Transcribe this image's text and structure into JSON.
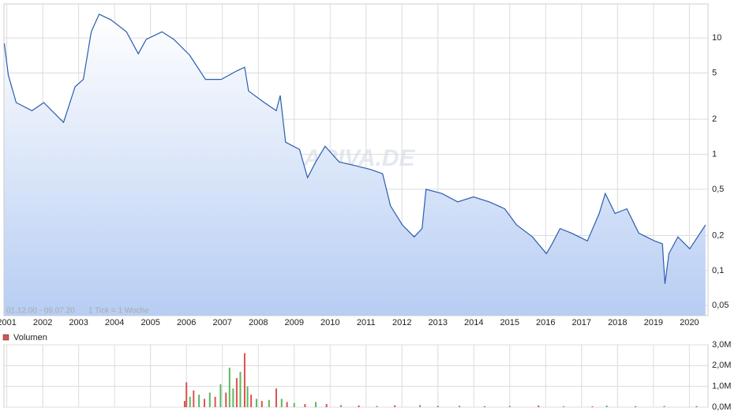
{
  "chart_data": [
    {
      "type": "line",
      "log_scale": true,
      "grid": true,
      "color": "#2a5db0",
      "note": "01.12.00 - 09.07.20",
      "tick_note": "1 Tick = 1 Woche",
      "watermark": "ARIVA.DE",
      "x": [
        2000.93,
        2001.04,
        2001.26,
        2001.7,
        2002.03,
        2002.47,
        2002.58,
        2002.9,
        2003.13,
        2003.35,
        2003.57,
        2003.9,
        2004.33,
        2004.66,
        2004.88,
        2005.32,
        2005.65,
        2006.09,
        2006.53,
        2006.97,
        2007.4,
        2007.62,
        2007.73,
        2008.17,
        2008.5,
        2008.61,
        2008.76,
        2009.15,
        2009.37,
        2009.6,
        2009.86,
        2010.25,
        2010.69,
        2011.13,
        2011.46,
        2011.68,
        2012.01,
        2012.34,
        2012.56,
        2012.67,
        2013.11,
        2013.55,
        2013.99,
        2014.43,
        2014.86,
        2015.19,
        2015.63,
        2016.02,
        2016.18,
        2016.4,
        2016.72,
        2017.16,
        2017.49,
        2017.66,
        2017.93,
        2018.26,
        2018.59,
        2019.03,
        2019.25,
        2019.32,
        2019.43,
        2019.68,
        2020.01,
        2020.23,
        2020.45
      ],
      "values": [
        8.96,
        4.8,
        2.78,
        2.37,
        2.78,
        2.03,
        1.88,
        3.8,
        4.4,
        11.3,
        16,
        14.3,
        11.3,
        7.3,
        9.7,
        11.3,
        9.7,
        7.1,
        4.4,
        4.4,
        5.2,
        5.6,
        3.5,
        2.78,
        2.37,
        3.2,
        1.27,
        1.1,
        0.63,
        0.86,
        1.17,
        0.86,
        0.8,
        0.74,
        0.68,
        0.36,
        0.247,
        0.195,
        0.23,
        0.5,
        0.46,
        0.39,
        0.43,
        0.39,
        0.34,
        0.247,
        0.195,
        0.14,
        0.17,
        0.23,
        0.21,
        0.18,
        0.31,
        0.46,
        0.31,
        0.34,
        0.21,
        0.18,
        0.17,
        0.077,
        0.14,
        0.195,
        0.154,
        0.195,
        0.247
      ],
      "xlim": [
        2000.92,
        2020.52
      ],
      "xticks": [
        2001,
        2002,
        2003,
        2004,
        2005,
        2006,
        2007,
        2008,
        2009,
        2010,
        2011,
        2012,
        2013,
        2014,
        2015,
        2016,
        2017,
        2018,
        2019,
        2020
      ],
      "ylim": [
        0.041,
        19.6
      ],
      "yticks": [
        {
          "value": 10,
          "label": "10"
        },
        {
          "value": 5,
          "label": "5"
        },
        {
          "value": 2,
          "label": "2"
        },
        {
          "value": 1,
          "label": "1"
        },
        {
          "value": 0.5,
          "label": "0,5"
        },
        {
          "value": 0.2,
          "label": "0,2"
        },
        {
          "value": 0.1,
          "label": "0,1"
        },
        {
          "value": 0.05,
          "label": "0,05"
        }
      ]
    },
    {
      "type": "bar",
      "grid": true,
      "x": [
        2005.95,
        2006.0,
        2006.1,
        2006.2,
        2006.35,
        2006.5,
        2006.65,
        2006.8,
        2006.95,
        2007.1,
        2007.2,
        2007.3,
        2007.4,
        2007.5,
        2007.62,
        2007.7,
        2007.8,
        2007.95,
        2008.1,
        2008.3,
        2008.5,
        2008.65,
        2008.8,
        2009.0,
        2009.3,
        2009.6,
        2009.9,
        2010.3,
        2010.8,
        2011.3,
        2011.8,
        2012.5,
        2013.0,
        2013.6,
        2014.3,
        2015.0,
        2015.8,
        2016.5,
        2017.3,
        2017.7,
        2018.5,
        2019.3,
        2020.2
      ],
      "series": [
        {
          "name": "Volumen",
          "color": "#d9534f",
          "values": [
            300000,
            1200000,
            500000,
            800000,
            600000,
            400000,
            700000,
            500000,
            1100000,
            700000,
            1900000,
            900000,
            1400000,
            1700000,
            2600000,
            1000000,
            600000,
            400000,
            300000,
            350000,
            900000,
            400000,
            250000,
            200000,
            150000,
            250000,
            150000,
            100000,
            80000,
            60000,
            90000,
            100000,
            60000,
            70000,
            50000,
            60000,
            80000,
            50000,
            40000,
            80000,
            50000,
            60000,
            50000
          ]
        }
      ],
      "bar_colors": [
        "#d9534f",
        "#d9534f",
        "#5cb85c",
        "#d9534f",
        "#5cb85c",
        "#d9534f",
        "#5cb85c",
        "#d9534f",
        "#5cb85c",
        "#d9534f",
        "#5cb85c",
        "#5cb85c",
        "#d9534f",
        "#5cb85c",
        "#d9534f",
        "#5cb85c",
        "#d9534f",
        "#5cb85c",
        "#d9534f",
        "#5cb85c",
        "#d9534f",
        "#5cb85c",
        "#d9534f",
        "#5cb85c",
        "#d9534f",
        "#5cb85c",
        "#d9534f",
        "#5cb85c",
        "#d9534f",
        "#5cb85c",
        "#d9534f",
        "#5cb85c",
        "#d9534f",
        "#5cb85c",
        "#d9534f",
        "#5cb85c",
        "#d9534f",
        "#5cb85c",
        "#d9534f",
        "#5cb85c",
        "#d9534f",
        "#5cb85c",
        "#d9534f"
      ],
      "xlim": [
        2000.92,
        2020.52
      ],
      "ylim": [
        0,
        3000000
      ],
      "yticks": [
        {
          "value": 0,
          "label": "0,0M"
        },
        {
          "value": 1000000,
          "label": "1,0M"
        },
        {
          "value": 2000000,
          "label": "2,0M"
        },
        {
          "value": 3000000,
          "label": "3,0M"
        }
      ]
    }
  ]
}
